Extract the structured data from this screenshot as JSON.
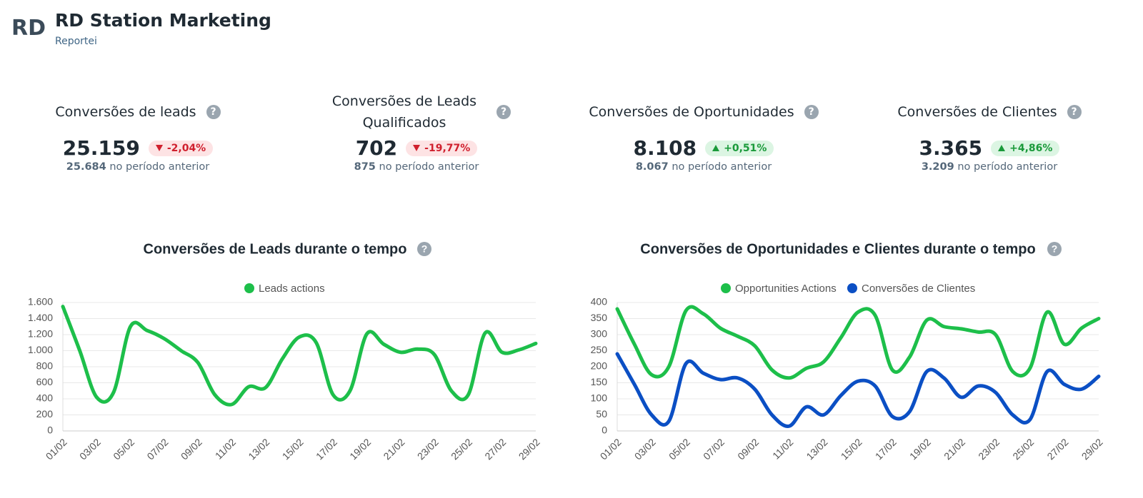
{
  "header": {
    "logo": "RD",
    "title": "RD Station Marketing",
    "subtitle": "Reportei"
  },
  "kpis": [
    {
      "title": "Conversões de leads",
      "value": "25.159",
      "change": "-2,04%",
      "trend": "down",
      "previous": "25.684",
      "previous_label": "no período anterior"
    },
    {
      "title": "Conversões de Leads Qualificados",
      "value": "702",
      "change": "-19,77%",
      "trend": "down",
      "previous": "875",
      "previous_label": "no período anterior"
    },
    {
      "title": "Conversões de Oportunidades",
      "value": "8.108",
      "change": "+0,51%",
      "trend": "up",
      "previous": "8.067",
      "previous_label": "no período anterior"
    },
    {
      "title": "Conversões de Clientes",
      "value": "3.365",
      "change": "+4,86%",
      "trend": "up",
      "previous": "3.209",
      "previous_label": "no período anterior"
    }
  ],
  "chart_data": [
    {
      "type": "line",
      "title": "Conversões de Leads durante o tempo",
      "categories": [
        "01/02",
        null,
        "03/02",
        null,
        "05/02",
        null,
        "07/02",
        null,
        "09/02",
        null,
        "11/02",
        null,
        "13/02",
        null,
        "15/02",
        null,
        "17/02",
        null,
        "19/02",
        null,
        "21/02",
        null,
        "23/02",
        null,
        "25/02",
        null,
        "27/02",
        null,
        "29/02"
      ],
      "series": [
        {
          "name": "Leads actions",
          "color": "#1dbf4a",
          "values": [
            1550,
            1000,
            420,
            480,
            1300,
            1250,
            1150,
            1000,
            850,
            450,
            330,
            550,
            540,
            900,
            1170,
            1100,
            450,
            500,
            1210,
            1080,
            980,
            1020,
            950,
            500,
            450,
            1220,
            980,
            1010,
            1090
          ]
        }
      ],
      "ylim": [
        0,
        1600
      ],
      "yticks": [
        0,
        200,
        400,
        600,
        800,
        {
          "value": 1000,
          "label": "1.000"
        },
        {
          "value": 1200,
          "label": "1.200"
        },
        {
          "value": 1400,
          "label": "1.400"
        },
        {
          "value": 1600,
          "label": "1.600"
        }
      ],
      "grid": true,
      "legend": "top"
    },
    {
      "type": "line",
      "title": "Conversões de Oportunidades e Clientes durante o tempo",
      "categories": [
        "01/02",
        null,
        "03/02",
        null,
        "05/02",
        null,
        "07/02",
        null,
        "09/02",
        null,
        "11/02",
        null,
        "13/02",
        null,
        "15/02",
        null,
        "17/02",
        null,
        "19/02",
        null,
        "21/02",
        null,
        "23/02",
        null,
        "25/02",
        null,
        "27/02",
        null,
        "29/02"
      ],
      "series": [
        {
          "name": "Opportunities Actions",
          "color": "#1dbf4a",
          "values": [
            380,
            270,
            175,
            200,
            375,
            365,
            320,
            295,
            265,
            190,
            165,
            195,
            215,
            290,
            370,
            360,
            190,
            230,
            345,
            325,
            318,
            308,
            300,
            185,
            195,
            370,
            270,
            320,
            350
          ]
        },
        {
          "name": "Conversões de Clientes",
          "color": "#0b4fc4",
          "values": [
            240,
            145,
            50,
            30,
            210,
            180,
            160,
            165,
            130,
            50,
            15,
            75,
            50,
            110,
            155,
            140,
            45,
            60,
            185,
            165,
            105,
            140,
            120,
            50,
            35,
            185,
            145,
            130,
            170
          ]
        }
      ],
      "ylim": [
        0,
        400
      ],
      "yticks": [
        0,
        50,
        100,
        150,
        200,
        250,
        300,
        350,
        400
      ],
      "grid": true,
      "legend": "top"
    }
  ]
}
